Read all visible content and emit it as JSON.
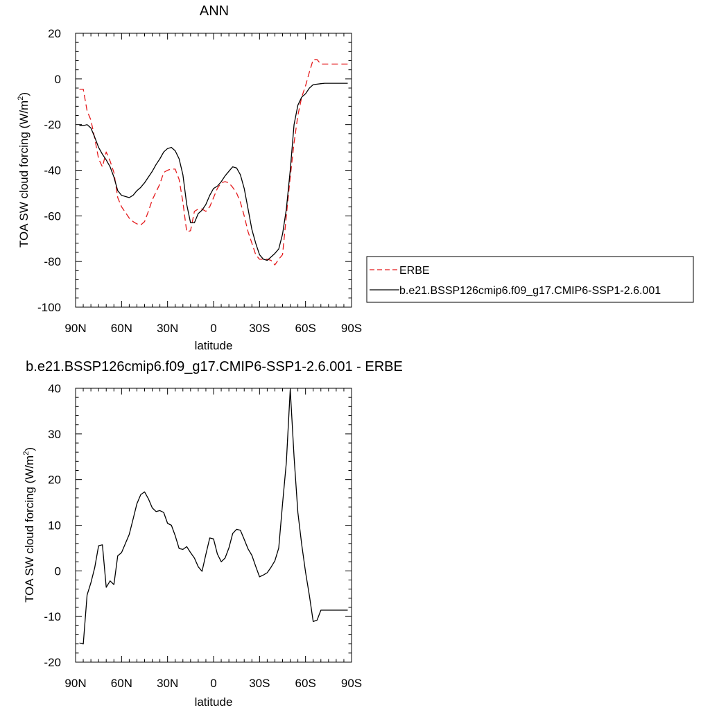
{
  "chart_data": [
    {
      "type": "line",
      "title": "ANN",
      "xlabel": "latitude",
      "ylabel": "TOA SW cloud forcing (W/m",
      "ylabel_sup": "2",
      "ylabel_end": ")",
      "xlim": [
        90,
        -90
      ],
      "ylim": [
        -100,
        20
      ],
      "xticks": [
        90,
        60,
        30,
        0,
        -30,
        -60,
        -90
      ],
      "xtick_labels": [
        "90N",
        "60N",
        "30N",
        "0",
        "30S",
        "60S",
        "90S"
      ],
      "yticks": [
        20,
        0,
        -20,
        -40,
        -60,
        -80,
        -100
      ],
      "ytick_labels": [
        "20",
        "0",
        "-20",
        "-40",
        "-60",
        "-80",
        "-100"
      ],
      "legend": {
        "position": "right",
        "entries": [
          "ERBE",
          "b.e21.BSSP126cmip6.f09_g17.CMIP6-SSP1-2.6.001"
        ]
      },
      "series": [
        {
          "name": "ERBE",
          "color": "#e41a1c",
          "dash": true,
          "x": [
            87.5,
            85,
            82.5,
            80,
            77.5,
            75,
            72.5,
            70,
            67.5,
            65,
            62.5,
            60,
            57.5,
            55,
            52.5,
            50,
            47.5,
            45,
            42.5,
            40,
            37.5,
            35,
            32.5,
            30,
            27.5,
            25,
            22.5,
            20,
            17.5,
            15,
            12.5,
            10,
            7.5,
            5,
            2.5,
            0,
            -2.5,
            -5,
            -7.5,
            -10,
            -12.5,
            -15,
            -17.5,
            -20,
            -22.5,
            -25,
            -27.5,
            -30,
            -32.5,
            -35,
            -37.5,
            -40,
            -42.5,
            -45,
            -47.5,
            -50,
            -52.5,
            -55,
            -57.5,
            -60,
            -62.5,
            -65,
            -67.5,
            -70,
            -72.5,
            -75,
            -77.5,
            -80,
            -82.5,
            -85,
            -87.5
          ],
          "y": [
            -4.5,
            -4.5,
            -14,
            -18,
            -26,
            -35,
            -38.5,
            -32,
            -36,
            -41,
            -52,
            -56,
            -58.5,
            -61,
            -62.5,
            -63.5,
            -64,
            -62.5,
            -58,
            -53,
            -49.5,
            -46,
            -41,
            -40,
            -39.5,
            -39.5,
            -44,
            -54,
            -67,
            -66.5,
            -58,
            -57,
            -57,
            -58,
            -56,
            -52,
            -48,
            -45.5,
            -45,
            -45.5,
            -47.5,
            -50,
            -54,
            -60,
            -67,
            -72,
            -77,
            -79,
            -79,
            -79,
            -79.5,
            -81.5,
            -79,
            -77,
            -60,
            -43,
            -28,
            -16,
            -8,
            -3,
            3,
            8.5,
            8.5,
            6.5,
            6.5,
            6.5,
            6.5,
            6.5,
            6.5,
            6.5,
            6.5
          ]
        },
        {
          "name": "b.e21.BSSP126cmip6.f09_g17.CMIP6-SSP1-2.6.001",
          "color": "#000000",
          "dash": false,
          "x": [
            87.5,
            85,
            82.5,
            80,
            77.5,
            75,
            72.5,
            70,
            67.5,
            65,
            62.5,
            60,
            57.5,
            55,
            52.5,
            50,
            47.5,
            45,
            42.5,
            40,
            37.5,
            35,
            32.5,
            30,
            27.5,
            25,
            22.5,
            20,
            17.5,
            15,
            12.5,
            10,
            7.5,
            5,
            2.5,
            0,
            -2.5,
            -5,
            -7.5,
            -10,
            -12.5,
            -15,
            -17.5,
            -20,
            -22.5,
            -25,
            -27.5,
            -30,
            -32.5,
            -35,
            -37.5,
            -40,
            -42.5,
            -45,
            -47.5,
            -50,
            -52.5,
            -55,
            -57.5,
            -60,
            -62.5,
            -65,
            -67.5,
            -70,
            -72.5,
            -75,
            -77.5,
            -80,
            -82.5,
            -85,
            -87.5
          ],
          "y": [
            -20.5,
            -20.5,
            -20,
            -21.5,
            -25.5,
            -30,
            -33,
            -35.5,
            -38.5,
            -43,
            -49,
            -51,
            -51.5,
            -52,
            -51,
            -49,
            -47.5,
            -45.5,
            -43,
            -40.5,
            -37.5,
            -35,
            -32,
            -30.5,
            -30,
            -31.5,
            -35,
            -42,
            -55,
            -63,
            -63,
            -59,
            -57.5,
            -55,
            -51,
            -48,
            -47,
            -45,
            -42.5,
            -40.5,
            -38.5,
            -39,
            -42,
            -48,
            -57,
            -66,
            -72,
            -77,
            -79,
            -79.5,
            -78,
            -76.5,
            -74.5,
            -68,
            -57,
            -40,
            -20,
            -11.5,
            -8,
            -6.5,
            -4,
            -2.5,
            -2.3,
            -2.1,
            -1.9,
            -1.9,
            -1.9,
            -1.9,
            -1.9,
            -1.9,
            -1.9
          ]
        }
      ]
    },
    {
      "type": "line",
      "title": "b.e21.BSSP126cmip6.f09_g17.CMIP6-SSP1-2.6.001 - ERBE",
      "xlabel": "latitude",
      "ylabel": "TOA SW cloud forcing (W/m",
      "ylabel_sup": "2",
      "ylabel_end": ")",
      "xlim": [
        90,
        -90
      ],
      "ylim": [
        -20,
        40
      ],
      "xticks": [
        90,
        60,
        30,
        0,
        -30,
        -60,
        -90
      ],
      "xtick_labels": [
        "90N",
        "60N",
        "30N",
        "0",
        "30S",
        "60S",
        "90S"
      ],
      "yticks": [
        40,
        30,
        20,
        10,
        0,
        -10,
        -20
      ],
      "ytick_labels": [
        "40",
        "30",
        "20",
        "10",
        "0",
        "-10",
        "-20"
      ],
      "series": [
        {
          "color": "#000000",
          "dash": false,
          "x": [
            87.5,
            85,
            82.5,
            80,
            77.5,
            75,
            72.5,
            70,
            67.5,
            65,
            62.5,
            60,
            57.5,
            55,
            52.5,
            50,
            47.5,
            45,
            42.5,
            40,
            37.5,
            35,
            32.5,
            30,
            27.5,
            25,
            22.5,
            20,
            17.5,
            15,
            12.5,
            10,
            7.5,
            5,
            2.5,
            0,
            -2.5,
            -5,
            -7.5,
            -10,
            -12.5,
            -15,
            -17.5,
            -20,
            -22.5,
            -25,
            -27.5,
            -30,
            -32.5,
            -35,
            -37.5,
            -40,
            -42.5,
            -45,
            -47.5,
            -50,
            -52.5,
            -55,
            -57.5,
            -60,
            -62.5,
            -65,
            -67.5,
            -70,
            -72.5,
            -75,
            -77.5,
            -80,
            -82.5,
            -85,
            -87.5
          ],
          "y": [
            -15.8,
            -16,
            -5.3,
            -2.6,
            0.7,
            5.5,
            5.7,
            -3.6,
            -2.2,
            -3,
            3.3,
            4,
            6,
            8,
            11.3,
            14.7,
            16.7,
            17.3,
            15.8,
            13.8,
            13,
            13.2,
            12.8,
            10.4,
            10,
            7.7,
            4.9,
            4.7,
            5.3,
            4,
            2.8,
            0.9,
            -0.1,
            3.6,
            7.2,
            7,
            3.7,
            2,
            2.8,
            5,
            8.2,
            9.1,
            8.9,
            6.9,
            4.8,
            3.4,
            1,
            -1.3,
            -0.9,
            -0.4,
            0.8,
            2.2,
            5,
            14.7,
            23.8,
            39.8,
            25,
            12.8,
            5.8,
            -0.3,
            -5.4,
            -11.1,
            -10.8,
            -8.6,
            -8.6,
            -8.6,
            -8.6,
            -8.6,
            -8.6,
            -8.6,
            -8.6
          ]
        }
      ]
    }
  ]
}
